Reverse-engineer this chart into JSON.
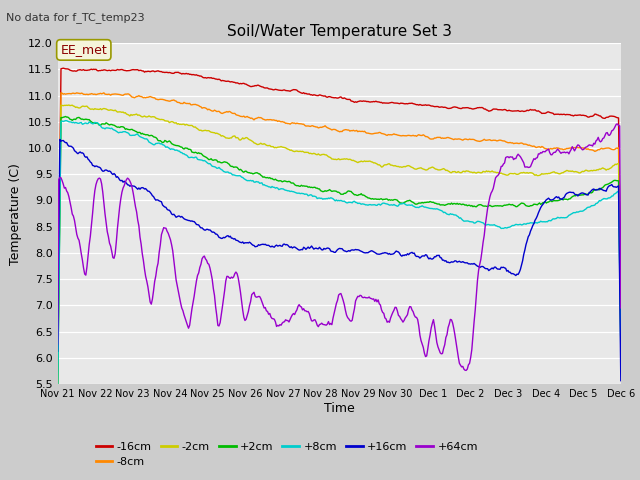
{
  "title": "Soil/Water Temperature Set 3",
  "subtitle": "No data for f_TC_temp23",
  "ylabel": "Temperature (C)",
  "xlabel": "Time",
  "ylim": [
    5.5,
    12.0
  ],
  "yticks": [
    5.5,
    6.0,
    6.5,
    7.0,
    7.5,
    8.0,
    8.5,
    9.0,
    9.5,
    10.0,
    10.5,
    11.0,
    11.5,
    12.0
  ],
  "annotation_text": "EE_met",
  "annotation_box_color": "#f5f5dc",
  "annotation_box_edge": "#999900",
  "series": [
    {
      "label": "-16cm",
      "color": "#cc0000"
    },
    {
      "label": "-8cm",
      "color": "#ff8800"
    },
    {
      "label": "-2cm",
      "color": "#cccc00"
    },
    {
      "label": "+2cm",
      "color": "#00bb00"
    },
    {
      "label": "+8cm",
      "color": "#00cccc"
    },
    {
      "label": "+16cm",
      "color": "#0000cc"
    },
    {
      "label": "+64cm",
      "color": "#9900cc"
    }
  ],
  "x_tick_labels": [
    "Nov 21",
    "Nov 22",
    "Nov 23",
    "Nov 24",
    "Nov 25",
    "Nov 26",
    "Nov 27",
    "Nov 28",
    "Nov 29",
    "Nov 30",
    "Dec 1",
    "Dec 2",
    "Dec 3",
    "Dec 4",
    "Dec 5",
    "Dec 6"
  ],
  "n_points": 500
}
